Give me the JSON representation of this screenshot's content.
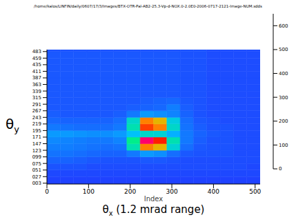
{
  "chart_data": {
    "type": "heatmap",
    "title": "/home/kalos/LINFIN/daily/0607/17/3/Images/BTX-OTR-Pal-AB2-25.3-Vp-d-NOX.0-2.0E0-2006-0717-2121-Image-NUM.sdds",
    "xlabel": "Index",
    "xlabel2": "θx (1.2 mrad range)",
    "ylabel": "θy",
    "xlim": [
      0,
      512
    ],
    "xticks": [
      0,
      100,
      200,
      300,
      400,
      500
    ],
    "ylim": [
      0,
      490
    ],
    "yticks": [
      {
        "value": 3,
        "label": "003"
      },
      {
        "value": 27,
        "label": "027"
      },
      {
        "value": 51,
        "label": "051"
      },
      {
        "value": 75,
        "label": "075"
      },
      {
        "value": 99,
        "label": "099"
      },
      123,
      147,
      171,
      195,
      219,
      243,
      267,
      291,
      315,
      339,
      363,
      387,
      411,
      435,
      459,
      483
    ],
    "x_edges": [
      0,
      32,
      64,
      96,
      128,
      160,
      192,
      224,
      256,
      288,
      320,
      352,
      384,
      416,
      448,
      480,
      512
    ],
    "y_edges": [
      0,
      27,
      51,
      75,
      99,
      123,
      147,
      171,
      195,
      219,
      243,
      267,
      291,
      315,
      339,
      363,
      387,
      411,
      435,
      459,
      483,
      490
    ],
    "cells": [
      [
        80,
        80,
        80,
        80,
        80,
        80,
        80,
        80,
        80,
        80,
        80,
        80,
        80,
        80,
        80,
        80
      ],
      [
        85,
        85,
        85,
        85,
        85,
        85,
        85,
        85,
        85,
        85,
        85,
        85,
        85,
        85,
        85,
        85
      ],
      [
        95,
        95,
        95,
        90,
        90,
        90,
        90,
        90,
        90,
        90,
        90,
        90,
        90,
        90,
        90,
        85
      ],
      [
        110,
        110,
        105,
        100,
        95,
        95,
        95,
        100,
        100,
        95,
        90,
        90,
        90,
        90,
        90,
        90
      ],
      [
        125,
        125,
        120,
        115,
        110,
        110,
        130,
        160,
        150,
        120,
        100,
        95,
        95,
        95,
        90,
        90
      ],
      [
        135,
        135,
        130,
        125,
        120,
        125,
        260,
        520,
        480,
        230,
        120,
        100,
        95,
        95,
        90,
        90
      ],
      [
        145,
        140,
        135,
        130,
        130,
        140,
        290,
        620,
        580,
        260,
        130,
        105,
        95,
        95,
        90,
        90
      ],
      [
        160,
        160,
        155,
        150,
        150,
        160,
        200,
        240,
        230,
        180,
        130,
        110,
        100,
        95,
        90,
        90
      ],
      [
        130,
        125,
        120,
        120,
        120,
        130,
        260,
        560,
        520,
        240,
        125,
        105,
        95,
        95,
        90,
        90
      ],
      [
        115,
        110,
        110,
        110,
        110,
        120,
        240,
        520,
        480,
        220,
        120,
        100,
        95,
        90,
        90,
        90
      ],
      [
        105,
        100,
        100,
        100,
        100,
        105,
        130,
        160,
        150,
        140,
        110,
        95,
        90,
        90,
        90,
        90
      ],
      [
        100,
        100,
        100,
        100,
        100,
        100,
        105,
        110,
        115,
        135,
        105,
        95,
        90,
        90,
        90,
        90
      ],
      [
        100,
        100,
        100,
        100,
        100,
        100,
        100,
        105,
        110,
        115,
        100,
        95,
        90,
        90,
        90,
        90
      ],
      [
        100,
        100,
        100,
        100,
        100,
        100,
        100,
        100,
        100,
        100,
        95,
        95,
        90,
        90,
        90,
        90
      ],
      [
        100,
        100,
        100,
        100,
        100,
        100,
        100,
        100,
        100,
        100,
        95,
        95,
        90,
        90,
        90,
        90
      ],
      [
        100,
        100,
        100,
        100,
        100,
        100,
        100,
        100,
        100,
        100,
        95,
        95,
        90,
        90,
        90,
        90
      ],
      [
        100,
        100,
        100,
        100,
        100,
        100,
        100,
        100,
        100,
        100,
        95,
        95,
        90,
        90,
        90,
        90
      ],
      [
        100,
        100,
        100,
        100,
        100,
        100,
        100,
        100,
        100,
        100,
        95,
        95,
        90,
        90,
        90,
        90
      ],
      [
        100,
        100,
        100,
        100,
        100,
        100,
        100,
        100,
        100,
        100,
        95,
        95,
        90,
        90,
        90,
        90
      ],
      [
        100,
        100,
        100,
        100,
        100,
        100,
        100,
        100,
        100,
        100,
        95,
        95,
        90,
        90,
        90,
        90
      ],
      [
        95,
        95,
        95,
        95,
        95,
        95,
        95,
        95,
        95,
        95,
        95,
        95,
        90,
        90,
        90,
        90
      ]
    ],
    "colorbar": {
      "range": [
        0,
        650
      ],
      "ticks": [
        0,
        100,
        200,
        300,
        400,
        500,
        600
      ]
    }
  }
}
